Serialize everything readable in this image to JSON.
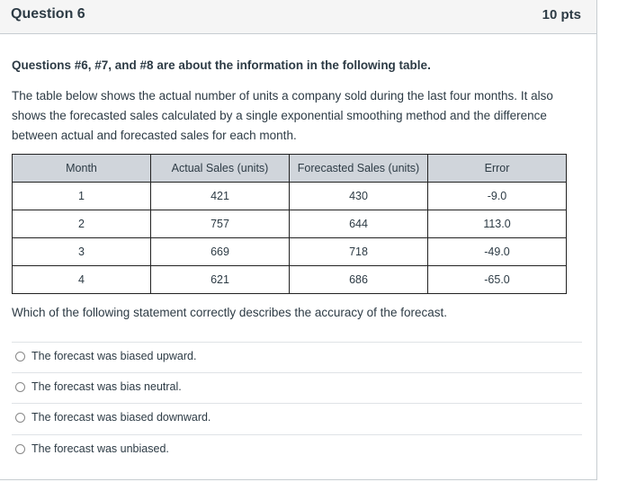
{
  "question": {
    "title": "Question 6",
    "points": "10 pts"
  },
  "intro": "Questions #6, #7, and #8 are about the information in the following table.",
  "description": "The table below shows the actual number of units a company sold during the last four months. It also shows the forecasted sales calculated by a single exponential smoothing method and the difference between actual and forecasted sales for each month.",
  "table": {
    "headers": [
      "Month",
      "Actual Sales (units)",
      "Forecasted Sales (units)",
      "Error"
    ],
    "rows": [
      [
        "1",
        "421",
        "430",
        "-9.0"
      ],
      [
        "2",
        "757",
        "644",
        "113.0"
      ],
      [
        "3",
        "669",
        "718",
        "-49.0"
      ],
      [
        "4",
        "621",
        "686",
        "-65.0"
      ]
    ]
  },
  "prompt": "Which of the following statement correctly describes the accuracy of the forecast.",
  "options": [
    "The forecast was biased upward.",
    "The forecast was bias neutral.",
    "The forecast was biased downward.",
    "The forecast was unbiased."
  ]
}
